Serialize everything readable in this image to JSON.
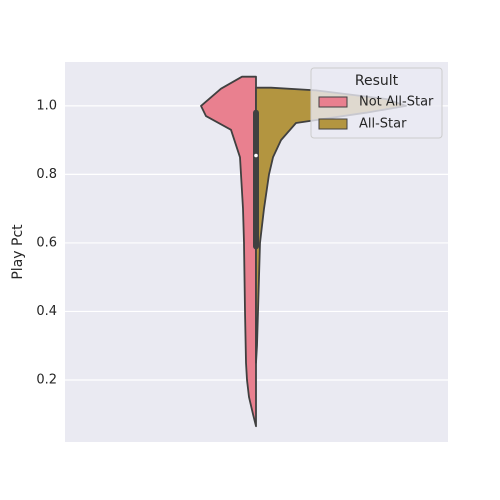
{
  "chart_data": {
    "type": "violin",
    "y_label": "Play Pct",
    "ylim": [
      0.019,
      1.128
    ],
    "yticks": [
      0.2,
      0.4,
      0.6,
      0.8,
      {
        "value": 1,
        "label": "1.0"
      }
    ],
    "grid": true,
    "legend_title": "Result",
    "legend_position": "upper right",
    "series": [
      {
        "name": "Not All-Star",
        "color": "#e9808f",
        "side": "left",
        "y": [
          1.085,
          1.085,
          1.05,
          1.0,
          0.97,
          0.93,
          0.85,
          0.7,
          0.6,
          0.4,
          0.25,
          0.2,
          0.15,
          0.1,
          0.065
        ],
        "width": [
          0,
          14,
          35,
          55,
          50,
          25,
          16,
          13,
          12,
          11,
          10,
          9,
          7,
          3,
          0
        ]
      },
      {
        "name": "All-Star",
        "color": "#b39540",
        "side": "right",
        "y": [
          1.053,
          1.053,
          1.045,
          1.02,
          1.0,
          0.98,
          0.95,
          0.9,
          0.85,
          0.8,
          0.7,
          0.6,
          0.5,
          0.4,
          0.3,
          0.25
        ],
        "width": [
          0,
          15,
          60,
          130,
          150,
          110,
          40,
          25,
          17,
          13,
          8,
          4,
          3,
          2,
          1,
          0
        ]
      }
    ],
    "box": {
      "q1": 0.59,
      "median": 0.855,
      "q3": 0.98
    }
  }
}
